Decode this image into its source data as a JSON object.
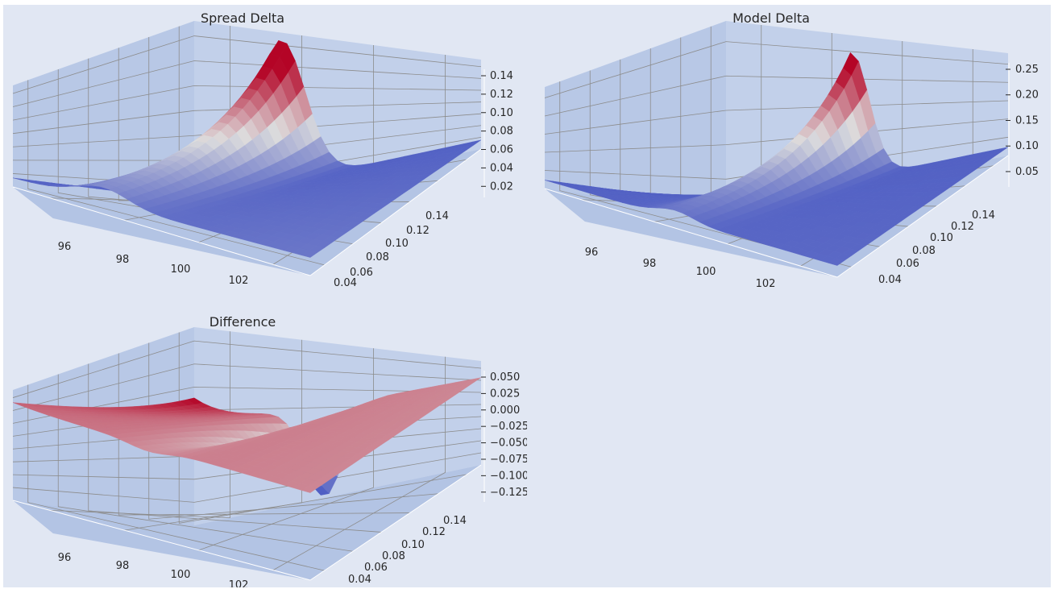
{
  "colors": {
    "figure_background": "#e1e7f3",
    "pane_left": "#b8c8e6",
    "pane_back": "#c2d0ea",
    "pane_floor": "#b3c4e4",
    "grid": "#8c8c8c",
    "colormap": "coolwarm",
    "cmap_low": "#3b4cc0",
    "cmap_mid": "#dddddd",
    "cmap_high": "#b40426"
  },
  "chart_data": [
    {
      "type": "surface",
      "title": "Spread Delta",
      "x_ticks": [
        "96",
        "98",
        "100",
        "102"
      ],
      "y_ticks": [
        "0.04",
        "0.06",
        "0.08",
        "0.10",
        "0.12",
        "0.14"
      ],
      "z_ticks": [
        "0.02",
        "0.04",
        "0.06",
        "0.08",
        "0.10",
        "0.12",
        "0.14"
      ],
      "xlim": [
        94.5,
        103.5
      ],
      "ylim": [
        0.025,
        0.15
      ],
      "zlim": [
        0.015,
        0.15
      ],
      "grid": true,
      "surface_model": {
        "baseline": 0.025,
        "peak": 0.145,
        "peak_x": 97.2,
        "peak_y": 0.145,
        "width_x": 1.1,
        "decay_y": 0.055,
        "tilt": 0.02
      }
    },
    {
      "type": "surface",
      "title": "Model Delta",
      "x_ticks": [
        "96",
        "98",
        "100",
        "102"
      ],
      "y_ticks": [
        "0.04",
        "0.06",
        "0.08",
        "0.10",
        "0.12",
        "0.14"
      ],
      "z_ticks": [
        "0.05",
        "0.10",
        "0.15",
        "0.20",
        "0.25"
      ],
      "xlim": [
        94.5,
        103.5
      ],
      "ylim": [
        0.025,
        0.15
      ],
      "zlim": [
        0.01,
        0.29
      ],
      "grid": true,
      "surface_model": {
        "baseline": 0.03,
        "peak": 0.27,
        "peak_x": 98.5,
        "peak_y": 0.145,
        "width_x": 0.8,
        "decay_y": 0.045,
        "tilt": 0.015
      }
    },
    {
      "type": "surface",
      "title": "Difference",
      "x_ticks": [
        "96",
        "98",
        "100",
        "102"
      ],
      "y_ticks": [
        "0.04",
        "0.06",
        "0.08",
        "0.10",
        "0.12",
        "0.14"
      ],
      "z_ticks": [
        "0.050",
        "0.025",
        "0.000",
        "−0.025",
        "−0.050",
        "−0.075",
        "−0.100",
        "−0.125"
      ],
      "xlim": [
        94.5,
        103.5
      ],
      "ylim": [
        0.025,
        0.15
      ],
      "zlim": [
        -0.14,
        0.06
      ],
      "grid": true,
      "surface_model": {
        "baseline": 0.0,
        "peak": -0.13,
        "peak_x": 98.6,
        "peak_y": 0.145,
        "width_x": 0.85,
        "decay_y": 0.045,
        "edge_bump": 0.05,
        "edge_x": 94.5
      }
    }
  ]
}
